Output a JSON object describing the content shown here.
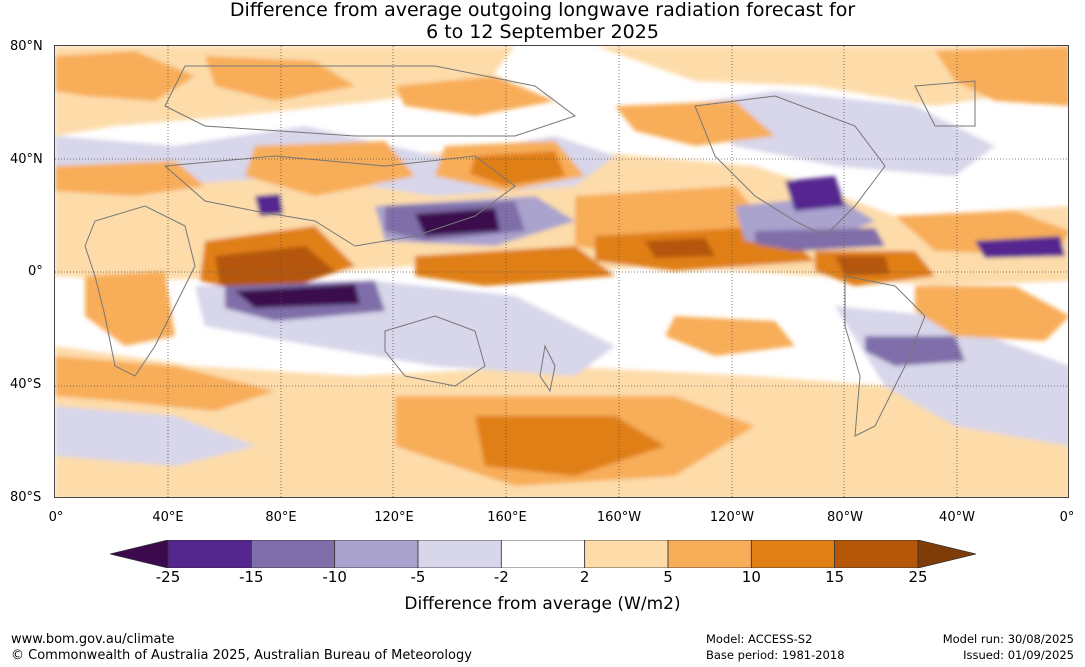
{
  "title": {
    "line1": "Difference from average outgoing longwave radiation forecast for",
    "line2": "6 to 12 September 2025"
  },
  "axes": {
    "lat_labels": [
      "80°N",
      "40°N",
      "0°",
      "40°S",
      "80°S"
    ],
    "lon_labels": [
      "0°",
      "40°E",
      "80°E",
      "120°E",
      "160°E",
      "160°W",
      "120°W",
      "80°W",
      "40°W",
      "0°"
    ]
  },
  "colorbar": {
    "ticks": [
      "-25",
      "-15",
      "-10",
      "-5",
      "-2",
      "2",
      "5",
      "10",
      "15",
      "25"
    ],
    "label": "Difference from average (W/m2)",
    "colors": [
      "#3b0a4d",
      "#54278f",
      "#7f6ea9",
      "#aaa3cd",
      "#d7d6ea",
      "#ffffff",
      "#fddcaa",
      "#f8ad59",
      "#e07f16",
      "#b45709",
      "#7f3b08"
    ]
  },
  "footer": {
    "website": "www.bom.gov.au/climate",
    "copyright": "© Commonwealth of Australia 2025, Australian Bureau of Meteorology",
    "model": "Model: ACCESS-S2",
    "base_period": "Base period: 1981-2018",
    "model_run": "Model run: 30/08/2025",
    "issued": "Issued: 01/09/2025"
  }
}
